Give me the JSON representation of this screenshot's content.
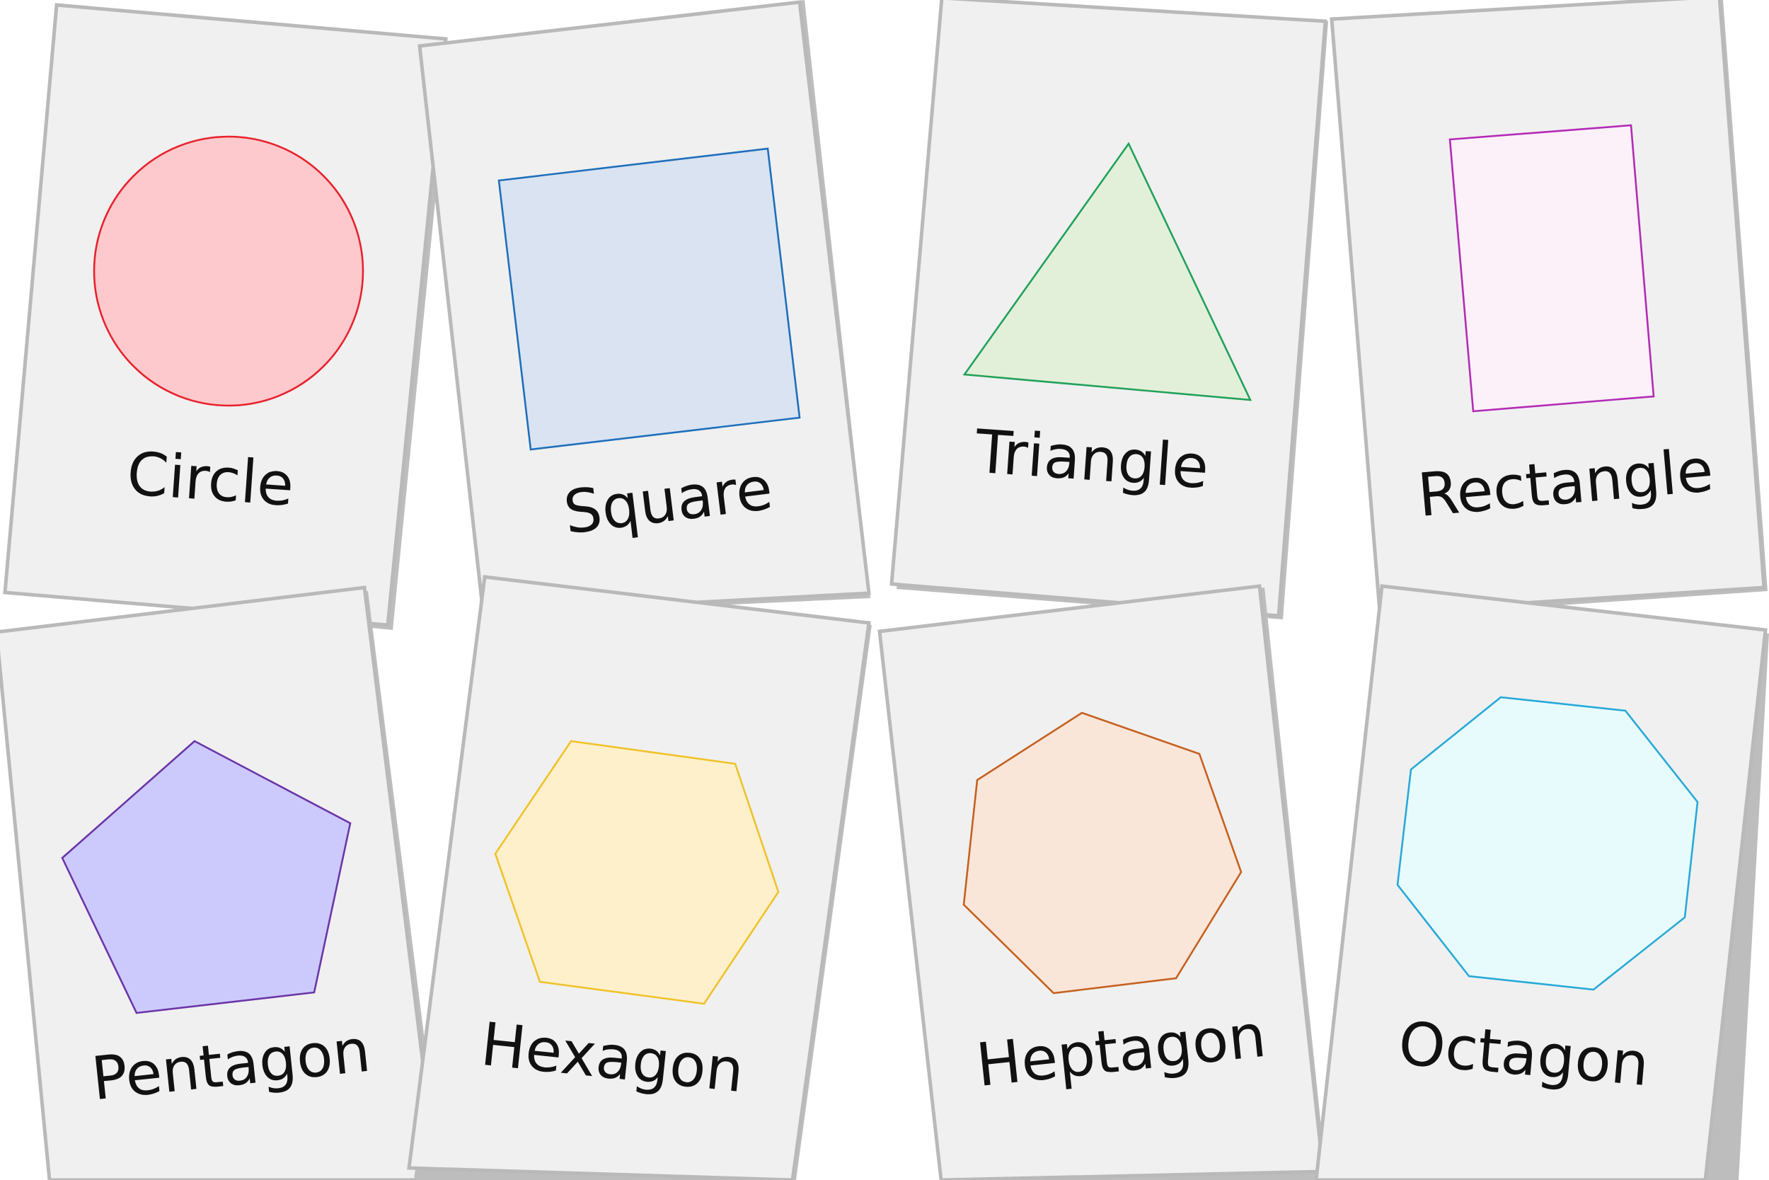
{
  "cards": [
    {
      "id": "circle",
      "label": "Circle",
      "fill": "#fdc9cc",
      "stroke": "#e8222c"
    },
    {
      "id": "square",
      "label": "Square",
      "fill": "#d9e3f2",
      "stroke": "#1f6fba"
    },
    {
      "id": "triangle",
      "label": "Triangle",
      "fill": "#e2f0da",
      "stroke": "#22a15a"
    },
    {
      "id": "rectangle",
      "label": "Rectangle",
      "fill": "#fcf0f9",
      "stroke": "#b32bb5"
    },
    {
      "id": "pentagon",
      "label": "Pentagon",
      "fill": "#cccafc",
      "stroke": "#6b36a8"
    },
    {
      "id": "hexagon",
      "label": "Hexagon",
      "fill": "#fff0cc",
      "stroke": "#f0c22a"
    },
    {
      "id": "heptagon",
      "label": "Heptagon",
      "fill": "#fae5d9",
      "stroke": "#c5611f"
    },
    {
      "id": "octagon",
      "label": "Octagon",
      "fill": "#e8fbfc",
      "stroke": "#27a9d8"
    }
  ]
}
